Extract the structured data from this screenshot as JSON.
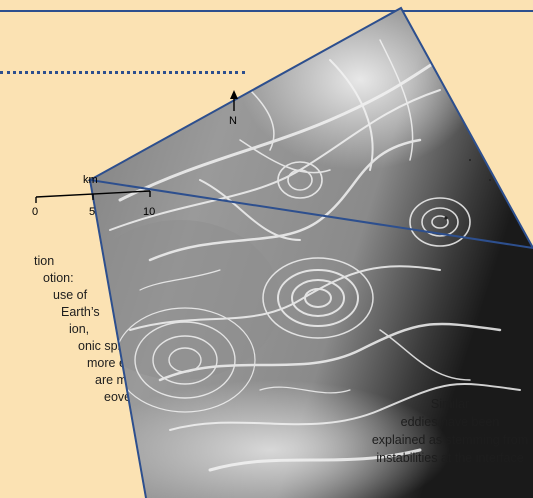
{
  "body_text_lines": [
    "tion",
    "otion:",
    "use of",
    "Earth’s",
    "ion,",
    "onic spirals",
    "more easily",
    "are more stable.",
    "eover, cyclonic"
  ],
  "caption_lines": [
    "Similar",
    "eddies have been",
    "explained as stemming from",
    "instabilities at the interface"
  ],
  "map": {
    "north_label": "N",
    "scale_unit": "km",
    "scale_ticks": [
      "0",
      "5",
      "10"
    ]
  },
  "colors": {
    "page_background": "#fbe2b3",
    "frame_blue": "#2d4f8e"
  }
}
